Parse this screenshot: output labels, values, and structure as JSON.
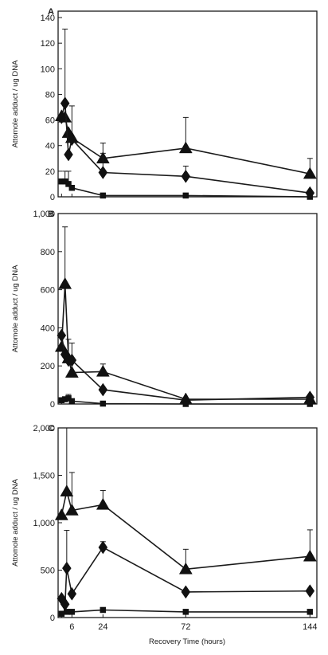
{
  "x_axis_label": "Recovery Time (hours)",
  "chart_data": [
    {
      "type": "line",
      "panel": "A",
      "ylabel": "Attomole adduct / ug DNA",
      "ylim": [
        0,
        145
      ],
      "yticks": [
        0,
        20,
        40,
        60,
        80,
        100,
        120,
        140
      ],
      "ytick_labels": [
        "0",
        "20",
        "40",
        "60",
        "80",
        "100",
        "120",
        "140"
      ],
      "xlim": [
        -2,
        148
      ],
      "xticks": [
        0,
        6,
        24,
        72,
        144
      ],
      "xtick_labels": [],
      "series": [
        {
          "marker": "triangle",
          "x": [
            0,
            2,
            4,
            6,
            24,
            72,
            144
          ],
          "y": [
            63,
            62,
            50,
            46,
            30,
            38,
            18
          ],
          "err": [
            0,
            0,
            0,
            25,
            12,
            24,
            12
          ]
        },
        {
          "marker": "diamond",
          "x": [
            0,
            2,
            4,
            6,
            24,
            72,
            144
          ],
          "y": [
            62,
            73,
            33,
            45,
            19,
            16,
            3
          ],
          "err": [
            0,
            58,
            0,
            0,
            15,
            8,
            0
          ]
        },
        {
          "marker": "square",
          "x": [
            0,
            2,
            4,
            6,
            24,
            72,
            144
          ],
          "y": [
            12,
            12,
            10,
            7,
            1,
            1,
            0
          ],
          "err": [
            0,
            8,
            10,
            0,
            0,
            0,
            0
          ]
        }
      ]
    },
    {
      "type": "line",
      "panel": "B",
      "ylabel": "Attomole adduct / ug DNA",
      "ylim": [
        0,
        1000
      ],
      "yticks": [
        0,
        200,
        400,
        600,
        800,
        1000
      ],
      "ytick_labels": [
        "0",
        "200",
        "400",
        "600",
        "800",
        "1,000"
      ],
      "xlim": [
        -2,
        148
      ],
      "xticks": [
        0,
        6,
        24,
        72,
        144
      ],
      "xtick_labels": [],
      "series": [
        {
          "marker": "triangle",
          "x": [
            0,
            2,
            4,
            6,
            24,
            72,
            144
          ],
          "y": [
            300,
            630,
            240,
            165,
            170,
            25,
            25
          ],
          "err": [
            0,
            300,
            0,
            60,
            40,
            0,
            0
          ]
        },
        {
          "marker": "diamond",
          "x": [
            0,
            2,
            4,
            6,
            24,
            72,
            144
          ],
          "y": [
            360,
            260,
            230,
            230,
            75,
            20,
            35
          ],
          "err": [
            0,
            0,
            110,
            90,
            0,
            0,
            0
          ]
        },
        {
          "marker": "square",
          "x": [
            0,
            2,
            4,
            6,
            24,
            72,
            144
          ],
          "y": [
            20,
            25,
            30,
            15,
            2,
            0,
            0
          ],
          "err": [
            0,
            0,
            20,
            0,
            0,
            0,
            0
          ]
        }
      ]
    },
    {
      "type": "line",
      "panel": "C",
      "ylabel": "Attomole adduct / ug DNA",
      "ylim": [
        0,
        2000
      ],
      "yticks": [
        0,
        500,
        1000,
        1500,
        2000
      ],
      "ytick_labels": [
        "0",
        "500",
        "1,000",
        "1,500",
        "2,000"
      ],
      "xlim": [
        -2,
        148
      ],
      "xticks": [
        0,
        6,
        24,
        72,
        144
      ],
      "xtick_labels": [
        "6",
        "24",
        "72",
        "144"
      ],
      "xtick_label_values": [
        6,
        24,
        72,
        144
      ],
      "series": [
        {
          "marker": "triangle",
          "x": [
            0,
            3,
            6,
            24,
            72,
            144
          ],
          "y": [
            1080,
            1330,
            1130,
            1190,
            510,
            645
          ],
          "err": [
            0,
            720,
            400,
            150,
            210,
            280
          ]
        },
        {
          "marker": "diamond",
          "x": [
            0,
            2,
            3,
            6,
            24,
            72,
            144
          ],
          "y": [
            200,
            140,
            520,
            250,
            740,
            270,
            280
          ],
          "err": [
            0,
            0,
            400,
            0,
            60,
            0,
            0
          ]
        },
        {
          "marker": "square",
          "x": [
            0,
            3,
            6,
            24,
            72,
            144
          ],
          "y": [
            40,
            60,
            60,
            80,
            60,
            60
          ],
          "err": [
            0,
            0,
            0,
            0,
            0,
            0
          ]
        }
      ]
    }
  ]
}
